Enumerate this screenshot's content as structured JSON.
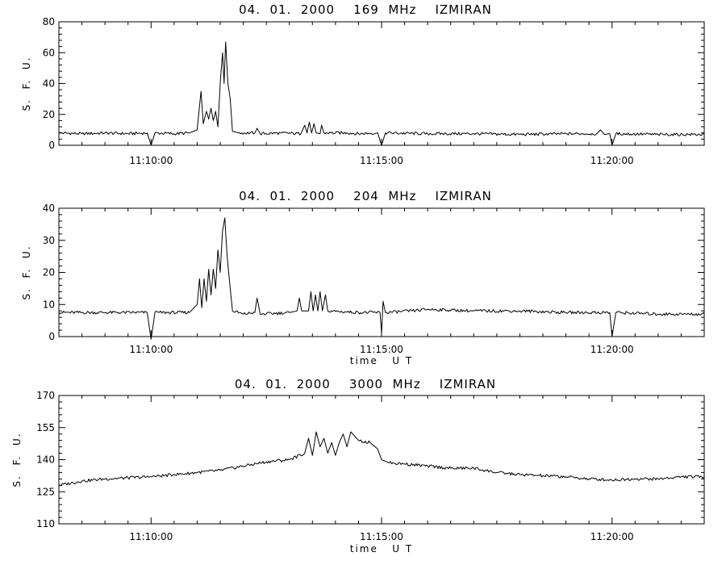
{
  "chart_data": [
    {
      "type": "line",
      "title": "04.  01.  2000    169  MHz    IZMIRAN",
      "ylabel": "S.  F.  U.",
      "xlabel": "",
      "ylim": [
        0,
        80
      ],
      "yticks": [
        0,
        20,
        40,
        60,
        80
      ],
      "ytick_labels": [
        "0",
        "20",
        "40",
        "60",
        "80"
      ],
      "xlim": [
        "11:08:00",
        "11:22:00"
      ],
      "xticks": [
        "11:10:00",
        "11:15:00",
        "11:20:00"
      ],
      "grid": false,
      "series": [
        {
          "points": [
            [
              "11:08:00",
              8
            ],
            [
              "11:08:30",
              7.5
            ],
            [
              "11:09:00",
              8
            ],
            [
              "11:09:30",
              7.5
            ],
            [
              "11:09:55",
              8
            ],
            [
              "11:10:00",
              0
            ],
            [
              "11:10:05",
              8
            ],
            [
              "11:10:30",
              7.5
            ],
            [
              "11:10:50",
              8
            ],
            [
              "11:11:00",
              10
            ],
            [
              "11:11:05",
              35
            ],
            [
              "11:11:08",
              14
            ],
            [
              "11:11:12",
              22
            ],
            [
              "11:11:15",
              17
            ],
            [
              "11:11:18",
              24
            ],
            [
              "11:11:21",
              16
            ],
            [
              "11:11:24",
              22
            ],
            [
              "11:11:27",
              12
            ],
            [
              "11:11:30",
              40
            ],
            [
              "11:11:33",
              60
            ],
            [
              "11:11:35",
              40
            ],
            [
              "11:11:37",
              67
            ],
            [
              "11:11:40",
              40
            ],
            [
              "11:11:43",
              30
            ],
            [
              "11:11:46",
              9
            ],
            [
              "11:11:55",
              8
            ],
            [
              "11:12:15",
              8
            ],
            [
              "11:12:18",
              11
            ],
            [
              "11:12:22",
              7.5
            ],
            [
              "11:12:50",
              8
            ],
            [
              "11:13:15",
              7.5
            ],
            [
              "11:13:20",
              13
            ],
            [
              "11:13:23",
              8
            ],
            [
              "11:13:26",
              15
            ],
            [
              "11:13:29",
              8
            ],
            [
              "11:13:32",
              14
            ],
            [
              "11:13:35",
              8
            ],
            [
              "11:13:40",
              7.5
            ],
            [
              "11:13:42",
              13
            ],
            [
              "11:13:45",
              8
            ],
            [
              "11:14:15",
              8
            ],
            [
              "11:14:30",
              7.5
            ],
            [
              "11:14:55",
              8
            ],
            [
              "11:15:00",
              0
            ],
            [
              "11:15:05",
              8
            ],
            [
              "11:16:00",
              7.5
            ],
            [
              "11:17:00",
              7.5
            ],
            [
              "11:18:00",
              7
            ],
            [
              "11:19:00",
              7.5
            ],
            [
              "11:19:40",
              7.5
            ],
            [
              "11:19:45",
              10
            ],
            [
              "11:19:50",
              7
            ],
            [
              "11:19:57",
              7.5
            ],
            [
              "11:20:00",
              0
            ],
            [
              "11:20:05",
              7.5
            ],
            [
              "11:21:00",
              7
            ],
            [
              "11:22:00",
              7
            ]
          ]
        }
      ]
    },
    {
      "type": "line",
      "title": "04.  01.  2000    204  MHz    IZMIRAN",
      "ylabel": "S.  F.  U.",
      "xlabel": "time   U T",
      "ylim": [
        0,
        40
      ],
      "yticks": [
        0,
        10,
        20,
        30,
        40
      ],
      "ytick_labels": [
        "0",
        "10",
        "20",
        "30",
        "40"
      ],
      "xlim": [
        "11:08:00",
        "11:22:00"
      ],
      "xticks": [
        "11:10:00",
        "11:15:00",
        "11:20:00"
      ],
      "grid": false,
      "series": [
        {
          "points": [
            [
              "11:08:00",
              7.5
            ],
            [
              "11:09:00",
              7.5
            ],
            [
              "11:09:55",
              7.5
            ],
            [
              "11:10:00",
              -1
            ],
            [
              "11:10:05",
              7.5
            ],
            [
              "11:10:50",
              7.5
            ],
            [
              "11:11:00",
              10
            ],
            [
              "11:11:03",
              18
            ],
            [
              "11:11:06",
              9
            ],
            [
              "11:11:09",
              18
            ],
            [
              "11:11:12",
              11
            ],
            [
              "11:11:15",
              21
            ],
            [
              "11:11:18",
              13
            ],
            [
              "11:11:21",
              21
            ],
            [
              "11:11:24",
              15
            ],
            [
              "11:11:27",
              27
            ],
            [
              "11:11:30",
              20
            ],
            [
              "11:11:33",
              33
            ],
            [
              "11:11:36",
              37
            ],
            [
              "11:11:39",
              25
            ],
            [
              "11:11:43",
              15
            ],
            [
              "11:11:46",
              8
            ],
            [
              "11:12:00",
              7
            ],
            [
              "11:12:15",
              7.5
            ],
            [
              "11:12:18",
              12
            ],
            [
              "11:12:22",
              7
            ],
            [
              "11:13:00",
              7.5
            ],
            [
              "11:13:10",
              8
            ],
            [
              "11:13:13",
              12
            ],
            [
              "11:13:16",
              8
            ],
            [
              "11:13:25",
              8
            ],
            [
              "11:13:28",
              14
            ],
            [
              "11:13:31",
              8
            ],
            [
              "11:13:34",
              13
            ],
            [
              "11:13:37",
              8
            ],
            [
              "11:13:40",
              14
            ],
            [
              "11:13:43",
              8
            ],
            [
              "11:13:47",
              13
            ],
            [
              "11:13:50",
              8
            ],
            [
              "11:14:30",
              7.5
            ],
            [
              "11:14:58",
              7.5
            ],
            [
              "11:15:00",
              1
            ],
            [
              "11:15:02",
              11
            ],
            [
              "11:15:05",
              7.5
            ],
            [
              "11:15:40",
              8
            ],
            [
              "11:16:00",
              8.5
            ],
            [
              "11:17:00",
              8
            ],
            [
              "11:18:00",
              8
            ],
            [
              "11:19:00",
              7.5
            ],
            [
              "11:19:57",
              7.5
            ],
            [
              "11:20:00",
              0
            ],
            [
              "11:20:05",
              7.5
            ],
            [
              "11:21:00",
              7
            ],
            [
              "11:22:00",
              7
            ]
          ]
        }
      ]
    },
    {
      "type": "line",
      "title": "04.  01.  2000    3000  MHz    IZMIRAN",
      "ylabel": "S.  F.  U.",
      "xlabel": "time   U T",
      "ylim": [
        110,
        170
      ],
      "yticks": [
        110,
        125,
        140,
        155,
        170
      ],
      "ytick_labels": [
        "110",
        "125",
        "140",
        "155",
        "170"
      ],
      "xlim": [
        "11:08:00",
        "11:22:00"
      ],
      "xticks": [
        "11:10:00",
        "11:15:00",
        "11:20:00"
      ],
      "grid": false,
      "series": [
        {
          "points": [
            [
              "11:08:00",
              128
            ],
            [
              "11:08:30",
              130
            ],
            [
              "11:09:00",
              131
            ],
            [
              "11:09:30",
              131.5
            ],
            [
              "11:10:00",
              132
            ],
            [
              "11:10:30",
              133
            ],
            [
              "11:11:00",
              134
            ],
            [
              "11:11:30",
              135
            ],
            [
              "11:12:00",
              137
            ],
            [
              "11:12:30",
              139
            ],
            [
              "11:13:00",
              140
            ],
            [
              "11:13:20",
              143
            ],
            [
              "11:13:25",
              150
            ],
            [
              "11:13:30",
              142
            ],
            [
              "11:13:35",
              153
            ],
            [
              "11:13:40",
              146
            ],
            [
              "11:13:45",
              150
            ],
            [
              "11:13:50",
              143
            ],
            [
              "11:13:55",
              148
            ],
            [
              "11:14:00",
              142
            ],
            [
              "11:14:05",
              148
            ],
            [
              "11:14:10",
              152
            ],
            [
              "11:14:15",
              146
            ],
            [
              "11:14:20",
              153
            ],
            [
              "11:14:30",
              149
            ],
            [
              "11:14:45",
              148
            ],
            [
              "11:14:55",
              145
            ],
            [
              "11:15:00",
              140
            ],
            [
              "11:15:10",
              138.5
            ],
            [
              "11:15:30",
              138
            ],
            [
              "11:16:00",
              137
            ],
            [
              "11:16:30",
              136
            ],
            [
              "11:17:00",
              136
            ],
            [
              "11:17:30",
              134
            ],
            [
              "11:18:00",
              133
            ],
            [
              "11:18:30",
              132.5
            ],
            [
              "11:19:00",
              132
            ],
            [
              "11:19:30",
              131
            ],
            [
              "11:20:00",
              130.5
            ],
            [
              "11:20:30",
              131
            ],
            [
              "11:21:00",
              131
            ],
            [
              "11:21:30",
              132
            ],
            [
              "11:22:00",
              132
            ]
          ]
        }
      ]
    }
  ]
}
